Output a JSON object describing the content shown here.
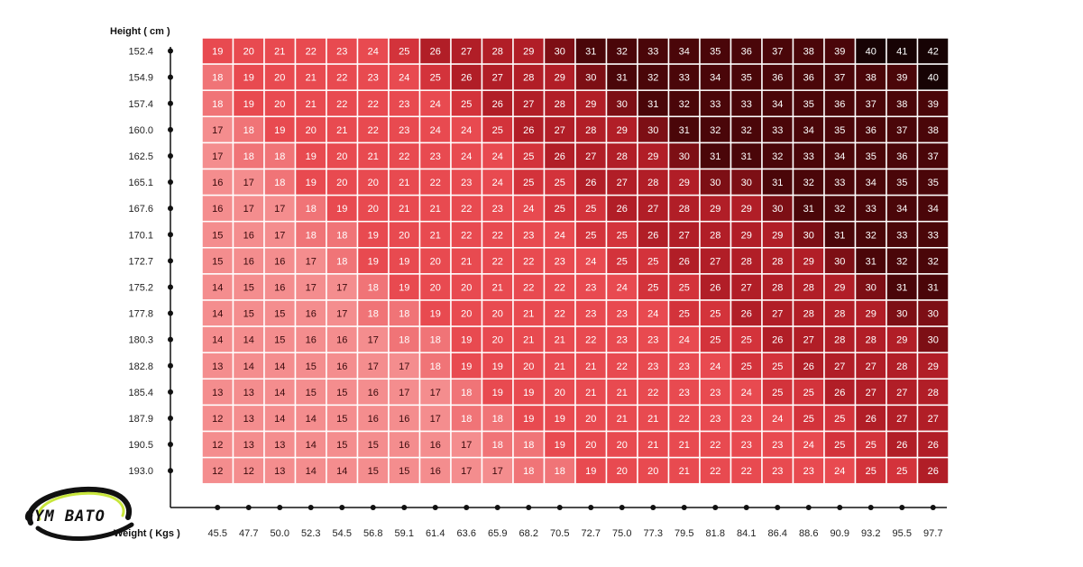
{
  "logo": {
    "text": "GYM BATO",
    "accent_color": "#c8e63c"
  },
  "chart_data": {
    "type": "heatmap",
    "title": "",
    "xlabel": "Weight ( Kgs )",
    "ylabel": "Height ( cm )",
    "x": [
      "45.5",
      "47.7",
      "50.0",
      "52.3",
      "54.5",
      "56.8",
      "59.1",
      "61.4",
      "63.6",
      "65.9",
      "68.2",
      "70.5",
      "72.7",
      "75.0",
      "77.3",
      "79.5",
      "81.8",
      "84.1",
      "86.4",
      "88.6",
      "90.9",
      "93.2",
      "95.5",
      "97.7"
    ],
    "y": [
      "152.4",
      "154.9",
      "157.4",
      "160.0",
      "162.5",
      "165.1",
      "167.6",
      "170.1",
      "172.7",
      "175.2",
      "177.8",
      "180.3",
      "182.8",
      "185.4",
      "187.9",
      "190.5",
      "193.0"
    ],
    "values": [
      [
        19,
        20,
        21,
        22,
        23,
        24,
        25,
        26,
        27,
        28,
        29,
        30,
        31,
        32,
        33,
        34,
        35,
        36,
        37,
        38,
        39,
        40,
        41,
        42
      ],
      [
        18,
        19,
        20,
        21,
        22,
        23,
        24,
        25,
        26,
        27,
        28,
        29,
        30,
        31,
        32,
        33,
        34,
        35,
        36,
        36,
        37,
        38,
        39,
        40
      ],
      [
        18,
        19,
        20,
        21,
        22,
        22,
        23,
        24,
        25,
        26,
        27,
        28,
        29,
        30,
        31,
        32,
        33,
        33,
        34,
        35,
        36,
        37,
        38,
        39
      ],
      [
        17,
        18,
        19,
        20,
        21,
        22,
        23,
        24,
        24,
        25,
        26,
        27,
        28,
        29,
        30,
        31,
        32,
        32,
        33,
        34,
        35,
        36,
        37,
        38
      ],
      [
        17,
        18,
        18,
        19,
        20,
        21,
        22,
        23,
        24,
        24,
        25,
        26,
        27,
        28,
        29,
        30,
        31,
        31,
        32,
        33,
        34,
        35,
        36,
        37
      ],
      [
        16,
        17,
        18,
        19,
        20,
        20,
        21,
        22,
        23,
        24,
        25,
        25,
        26,
        27,
        28,
        29,
        30,
        30,
        31,
        32,
        33,
        34,
        35,
        35
      ],
      [
        16,
        17,
        17,
        18,
        19,
        20,
        21,
        21,
        22,
        23,
        24,
        25,
        25,
        26,
        27,
        28,
        29,
        29,
        30,
        31,
        32,
        33,
        34,
        34
      ],
      [
        15,
        16,
        17,
        18,
        18,
        19,
        20,
        21,
        22,
        22,
        23,
        24,
        25,
        25,
        26,
        27,
        28,
        29,
        29,
        30,
        31,
        32,
        33,
        33
      ],
      [
        15,
        16,
        16,
        17,
        18,
        19,
        19,
        20,
        21,
        22,
        22,
        23,
        24,
        25,
        25,
        26,
        27,
        28,
        28,
        29,
        30,
        31,
        32,
        32
      ],
      [
        14,
        15,
        16,
        17,
        17,
        18,
        19,
        20,
        20,
        21,
        22,
        22,
        23,
        24,
        25,
        25,
        26,
        27,
        28,
        28,
        29,
        30,
        31,
        31
      ],
      [
        14,
        15,
        15,
        16,
        17,
        18,
        18,
        19,
        20,
        20,
        21,
        22,
        23,
        23,
        24,
        25,
        25,
        26,
        27,
        28,
        28,
        29,
        30,
        30
      ],
      [
        14,
        14,
        15,
        16,
        16,
        17,
        18,
        18,
        19,
        20,
        21,
        21,
        22,
        23,
        23,
        24,
        25,
        25,
        26,
        27,
        28,
        28,
        29,
        30
      ],
      [
        13,
        14,
        14,
        15,
        16,
        17,
        17,
        18,
        19,
        19,
        20,
        21,
        21,
        22,
        23,
        23,
        24,
        25,
        25,
        26,
        27,
        27,
        28,
        29
      ],
      [
        13,
        13,
        14,
        15,
        15,
        16,
        17,
        17,
        18,
        19,
        19,
        20,
        21,
        21,
        22,
        23,
        23,
        24,
        25,
        25,
        26,
        27,
        27,
        28
      ],
      [
        12,
        13,
        14,
        14,
        15,
        16,
        16,
        17,
        18,
        18,
        19,
        19,
        20,
        21,
        21,
        22,
        23,
        23,
        24,
        25,
        25,
        26,
        27,
        27
      ],
      [
        12,
        13,
        13,
        14,
        15,
        15,
        16,
        16,
        17,
        18,
        18,
        19,
        20,
        20,
        21,
        21,
        22,
        23,
        23,
        24,
        25,
        25,
        26,
        26
      ],
      [
        12,
        12,
        13,
        14,
        14,
        15,
        15,
        16,
        17,
        17,
        18,
        18,
        19,
        20,
        20,
        21,
        22,
        22,
        23,
        23,
        24,
        25,
        25,
        26
      ]
    ],
    "color_scale": [
      {
        "max": 17,
        "color": "#f48d8e"
      },
      {
        "max": 18,
        "color": "#f07477"
      },
      {
        "max": 24,
        "color": "#e84a50"
      },
      {
        "max": 25,
        "color": "#d3333b"
      },
      {
        "max": 29,
        "color": "#b11e27"
      },
      {
        "max": 30,
        "color": "#7d0f15"
      },
      {
        "max": 39,
        "color": "#4a0609"
      },
      {
        "max": 99,
        "color": "#170304"
      }
    ],
    "grid": false,
    "legend": "none"
  }
}
